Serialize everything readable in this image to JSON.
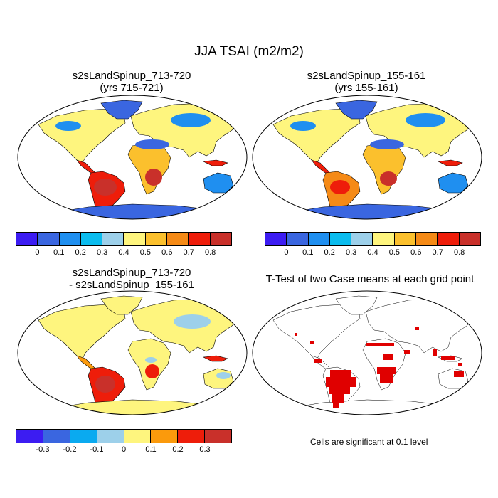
{
  "main_title": "JJA TSAI (m2/m2)",
  "panels": {
    "top_left": {
      "title_line1": "s2sLandSpinup_713-720",
      "title_line2": "(yrs 715-721)"
    },
    "top_right": {
      "title_line1": "s2sLandSpinup_155-161",
      "title_line2": "(yrs 155-161)"
    },
    "bottom_left": {
      "title_line1": "s2sLandSpinup_713-720",
      "title_line2": "- s2sLandSpinup_155-161"
    },
    "bottom_right": {
      "title_line1": "T-Test of two Case means at each grid point"
    }
  },
  "colorbar_abs": {
    "colors": [
      "#3c1cf2",
      "#3a66e0",
      "#1f8ff0",
      "#0bbcee",
      "#9dd0ea",
      "#fef57e",
      "#fbc02d",
      "#f58a16",
      "#ee1d0a",
      "#c9302a"
    ],
    "labels": [
      "0",
      "0.1",
      "0.2",
      "0.3",
      "0.4",
      "0.5",
      "0.6",
      "0.7",
      "0.8"
    ]
  },
  "colorbar_diff": {
    "colors": [
      "#3c1cf2",
      "#3a66e0",
      "#0aaaf0",
      "#9dd0ea",
      "#fef57e",
      "#fb9a0c",
      "#ee1d0a",
      "#c9302a"
    ],
    "labels": [
      "-0.3",
      "-0.2",
      "-0.1",
      "0",
      "0.1",
      "0.2",
      "0.3"
    ]
  },
  "significance_note": "Cells are significant at 0.1 level",
  "colors": {
    "ocean": "#ffffff",
    "significant": "#e00000",
    "coast": "#000000"
  }
}
